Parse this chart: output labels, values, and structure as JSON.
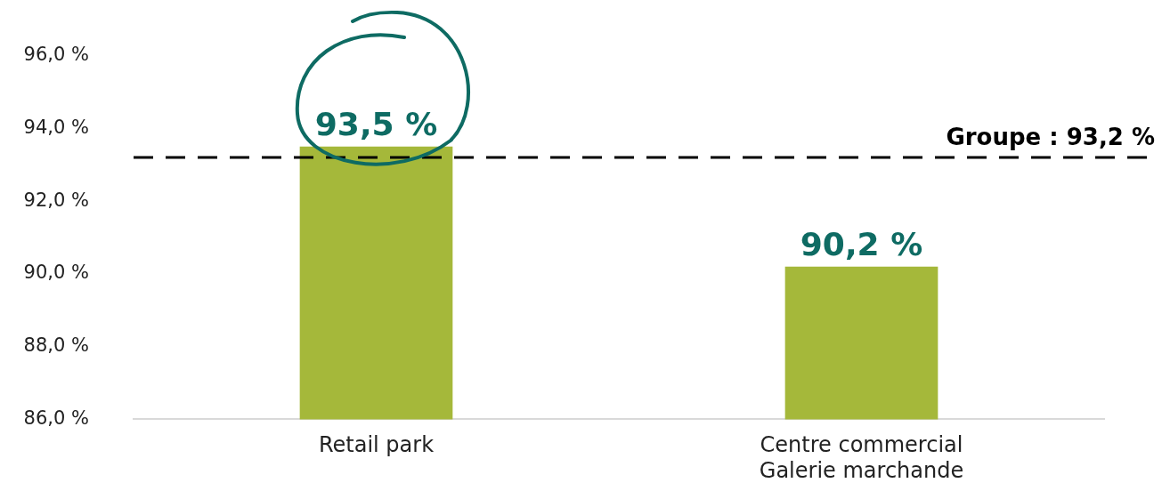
{
  "chart_data": {
    "type": "bar",
    "categories": [
      "Retail park",
      "Centre commercial\nGalerie marchande"
    ],
    "values": [
      93.5,
      90.2
    ],
    "color": "#a5b83a",
    "value_labels": [
      "93,5 %",
      "90,2 %"
    ],
    "ylim": [
      86,
      96
    ],
    "yticks": [
      {
        "value": 86,
        "label": "86,0 %"
      },
      {
        "value": 88,
        "label": "88,0 %"
      },
      {
        "value": 90,
        "label": "90,0 %"
      },
      {
        "value": 92,
        "label": "92,0 %"
      },
      {
        "value": 94,
        "label": "94,0 %"
      },
      {
        "value": 96,
        "label": "96,0 %"
      }
    ],
    "ref_lines": [
      {
        "axis": "y",
        "value": 93.2,
        "label": "Groupe : 93,2 %",
        "color": "#000000",
        "line_style": "dashed"
      }
    ],
    "grid": false,
    "legend": false
  }
}
